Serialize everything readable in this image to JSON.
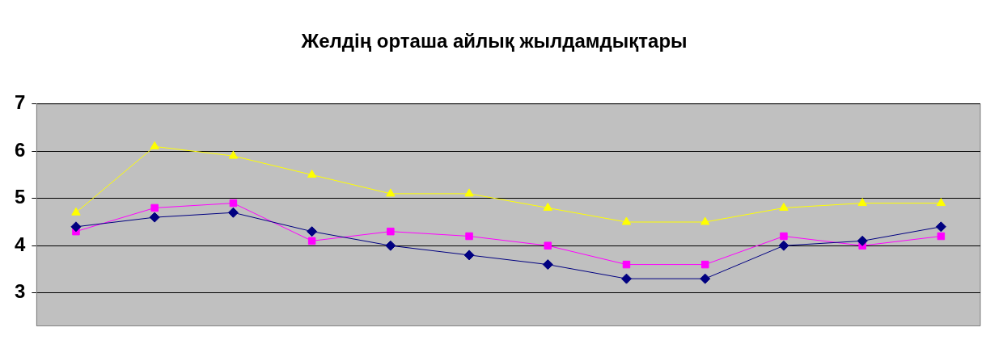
{
  "chart_data": {
    "type": "line",
    "title": "Желдің орташа айлық жылдамдықтары",
    "categories": [
      null,
      null,
      null,
      null,
      null,
      null,
      null,
      null,
      null,
      null,
      null,
      null
    ],
    "series": [
      {
        "color": "#000080",
        "marker": "diamond",
        "values": [
          4.4,
          4.6,
          4.7,
          4.3,
          4.0,
          3.8,
          3.6,
          3.3,
          3.3,
          4.0,
          4.1,
          4.4
        ]
      },
      {
        "color": "#ff00ff",
        "marker": "square",
        "values": [
          4.3,
          4.8,
          4.9,
          4.1,
          4.3,
          4.2,
          4.0,
          3.6,
          3.6,
          4.2,
          4.0,
          4.2
        ]
      },
      {
        "color": "#ffff00",
        "marker": "triangle",
        "values": [
          4.7,
          6.1,
          5.9,
          5.5,
          5.1,
          5.1,
          4.8,
          4.5,
          4.5,
          4.8,
          4.9,
          4.9
        ]
      }
    ],
    "ylim": [
      2.3,
      7
    ],
    "yticks": [
      3,
      4,
      5,
      6,
      7
    ],
    "grid": "y",
    "tick_labels": "y",
    "legend": false,
    "line_style": "solid"
  }
}
